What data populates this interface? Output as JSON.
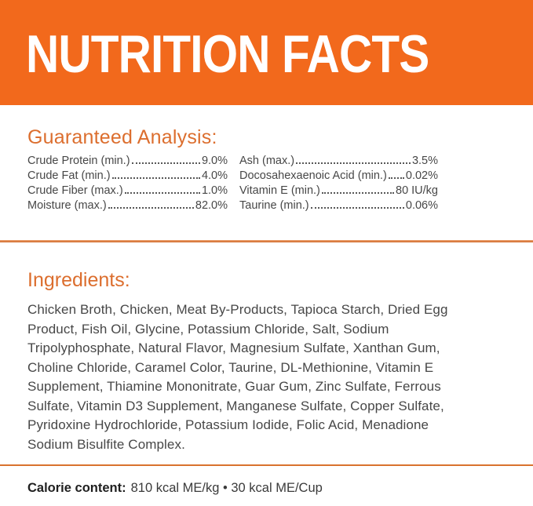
{
  "header": {
    "title": "NUTRITION FACTS"
  },
  "guaranteed_analysis": {
    "heading": "Guaranteed Analysis:",
    "left": [
      {
        "label": "Crude Protein (min.)",
        "value": "9.0%"
      },
      {
        "label": "Crude Fat (min.)",
        "value": "4.0%"
      },
      {
        "label": "Crude Fiber (max.)",
        "value": "1.0%"
      },
      {
        "label": "Moisture (max.)",
        "value": "82.0%"
      }
    ],
    "right": [
      {
        "label": "Ash (max.)",
        "value": "3.5%"
      },
      {
        "label": "Docosahexaenoic Acid (min.)",
        "value": "0.02%"
      },
      {
        "label": "Vitamin E (min.)",
        "value": "80 IU/kg"
      },
      {
        "label": "Taurine (min.)",
        "value": "0.06%"
      }
    ]
  },
  "ingredients": {
    "heading": "Ingredients:",
    "text": "Chicken Broth, Chicken, Meat By-Products, Tapioca Starch, Dried Egg\nProduct, Fish Oil, Glycine, Potassium Chloride, Salt, Sodium\nTripolyphosphate, Natural Flavor, Magnesium Sulfate, Xanthan Gum,\nCholine Chloride, Caramel Color, Taurine, DL-Methionine, Vitamin E\nSupplement, Thiamine Mononitrate, Guar Gum, Zinc Sulfate, Ferrous\nSulfate, Vitamin D3 Supplement, Manganese Sulfate, Copper Sulfate,\nPyridoxine Hydrochloride, Potassium Iodide, Folic Acid, Menadione\nSodium Bisulfite Complex."
  },
  "calorie": {
    "label": "Calorie content:",
    "value": "810 kcal ME/kg • 30 kcal ME/Cup"
  },
  "colors": {
    "brand_orange": "#F2691C",
    "heading_orange": "#DC6E2E",
    "divider_orange": "#D9722E",
    "text_dark": "#474747"
  }
}
